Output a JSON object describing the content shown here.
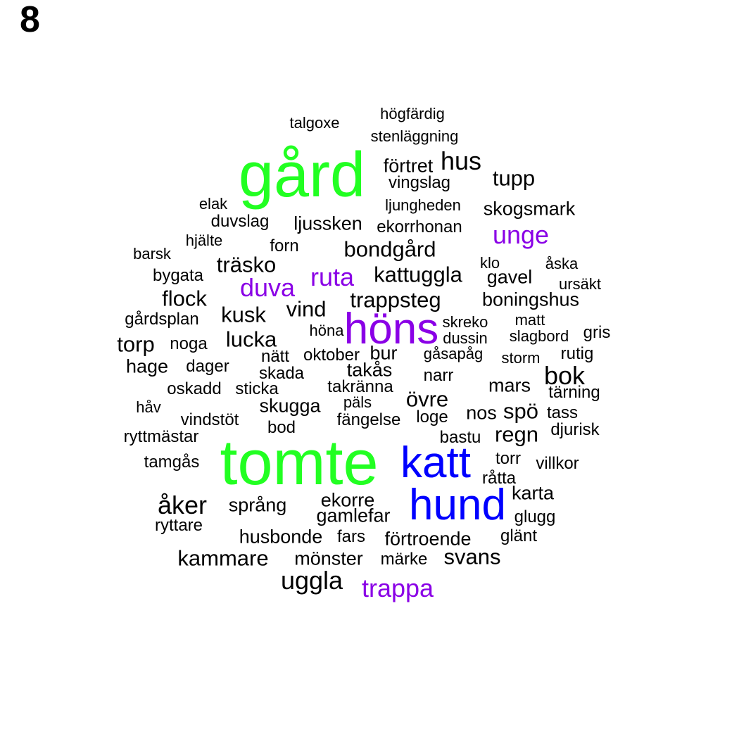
{
  "panel_label": "8",
  "colors": {
    "green": "#22ff22",
    "blue": "#0000ff",
    "purple": "#8a00e6",
    "black": "#000000"
  },
  "words": [
    {
      "text": "högfärdig",
      "color": "black"
    },
    {
      "text": "talgoxe",
      "color": "black"
    },
    {
      "text": "stenläggning",
      "color": "black"
    },
    {
      "text": "gård",
      "color": "green"
    },
    {
      "text": "förtret",
      "color": "black"
    },
    {
      "text": "hus",
      "color": "black"
    },
    {
      "text": "tupp",
      "color": "black"
    },
    {
      "text": "vingslag",
      "color": "black"
    },
    {
      "text": "elak",
      "color": "black"
    },
    {
      "text": "ljungheden",
      "color": "black"
    },
    {
      "text": "skogsmark",
      "color": "black"
    },
    {
      "text": "duvslag",
      "color": "black"
    },
    {
      "text": "ljussken",
      "color": "black"
    },
    {
      "text": "ekorrhonan",
      "color": "black"
    },
    {
      "text": "unge",
      "color": "purple"
    },
    {
      "text": "hjälte",
      "color": "black"
    },
    {
      "text": "forn",
      "color": "black"
    },
    {
      "text": "bondgård",
      "color": "black"
    },
    {
      "text": "barsk",
      "color": "black"
    },
    {
      "text": "träsko",
      "color": "black"
    },
    {
      "text": "klo",
      "color": "black"
    },
    {
      "text": "åska",
      "color": "black"
    },
    {
      "text": "bygata",
      "color": "black"
    },
    {
      "text": "ruta",
      "color": "purple"
    },
    {
      "text": "kattuggla",
      "color": "black"
    },
    {
      "text": "gavel",
      "color": "black"
    },
    {
      "text": "duva",
      "color": "purple"
    },
    {
      "text": "ursäkt",
      "color": "black"
    },
    {
      "text": "flock",
      "color": "black"
    },
    {
      "text": "trappsteg",
      "color": "black"
    },
    {
      "text": "boningshus",
      "color": "black"
    },
    {
      "text": "vind",
      "color": "black"
    },
    {
      "text": "kusk",
      "color": "black"
    },
    {
      "text": "gårdsplan",
      "color": "black"
    },
    {
      "text": "matt",
      "color": "black"
    },
    {
      "text": "höns",
      "color": "purple"
    },
    {
      "text": "skreko",
      "color": "black"
    },
    {
      "text": "höna",
      "color": "black"
    },
    {
      "text": "gris",
      "color": "black"
    },
    {
      "text": "slagbord",
      "color": "black"
    },
    {
      "text": "lucka",
      "color": "black"
    },
    {
      "text": "dussin",
      "color": "black"
    },
    {
      "text": "torp",
      "color": "black"
    },
    {
      "text": "noga",
      "color": "black"
    },
    {
      "text": "bur",
      "color": "black"
    },
    {
      "text": "gåsapåg",
      "color": "black"
    },
    {
      "text": "rutig",
      "color": "black"
    },
    {
      "text": "nätt",
      "color": "black"
    },
    {
      "text": "oktober",
      "color": "black"
    },
    {
      "text": "storm",
      "color": "black"
    },
    {
      "text": "hage",
      "color": "black"
    },
    {
      "text": "dager",
      "color": "black"
    },
    {
      "text": "takås",
      "color": "black"
    },
    {
      "text": "skada",
      "color": "black"
    },
    {
      "text": "narr",
      "color": "black"
    },
    {
      "text": "bok",
      "color": "black"
    },
    {
      "text": "mars",
      "color": "black"
    },
    {
      "text": "takränna",
      "color": "black"
    },
    {
      "text": "oskadd",
      "color": "black"
    },
    {
      "text": "sticka",
      "color": "black"
    },
    {
      "text": "tärning",
      "color": "black"
    },
    {
      "text": "övre",
      "color": "black"
    },
    {
      "text": "håv",
      "color": "black"
    },
    {
      "text": "päls",
      "color": "black"
    },
    {
      "text": "skugga",
      "color": "black"
    },
    {
      "text": "nos",
      "color": "black"
    },
    {
      "text": "spö",
      "color": "black"
    },
    {
      "text": "tass",
      "color": "black"
    },
    {
      "text": "loge",
      "color": "black"
    },
    {
      "text": "vindstöt",
      "color": "black"
    },
    {
      "text": "fängelse",
      "color": "black"
    },
    {
      "text": "bod",
      "color": "black"
    },
    {
      "text": "djurisk",
      "color": "black"
    },
    {
      "text": "regn",
      "color": "black"
    },
    {
      "text": "ryttmästar",
      "color": "black"
    },
    {
      "text": "bastu",
      "color": "black"
    },
    {
      "text": "tomte",
      "color": "green"
    },
    {
      "text": "katt",
      "color": "blue"
    },
    {
      "text": "torr",
      "color": "black"
    },
    {
      "text": "tamgås",
      "color": "black"
    },
    {
      "text": "villkor",
      "color": "black"
    },
    {
      "text": "råtta",
      "color": "black"
    },
    {
      "text": "karta",
      "color": "black"
    },
    {
      "text": "åker",
      "color": "black"
    },
    {
      "text": "hund",
      "color": "blue"
    },
    {
      "text": "ekorre",
      "color": "black"
    },
    {
      "text": "språng",
      "color": "black"
    },
    {
      "text": "glugg",
      "color": "black"
    },
    {
      "text": "gamlefar",
      "color": "black"
    },
    {
      "text": "ryttare",
      "color": "black"
    },
    {
      "text": "glänt",
      "color": "black"
    },
    {
      "text": "husbonde",
      "color": "black"
    },
    {
      "text": "fars",
      "color": "black"
    },
    {
      "text": "förtroende",
      "color": "black"
    },
    {
      "text": "kammare",
      "color": "black"
    },
    {
      "text": "svans",
      "color": "black"
    },
    {
      "text": "mönster",
      "color": "black"
    },
    {
      "text": "märke",
      "color": "black"
    },
    {
      "text": "uggla",
      "color": "black"
    },
    {
      "text": "trappa",
      "color": "purple"
    }
  ]
}
